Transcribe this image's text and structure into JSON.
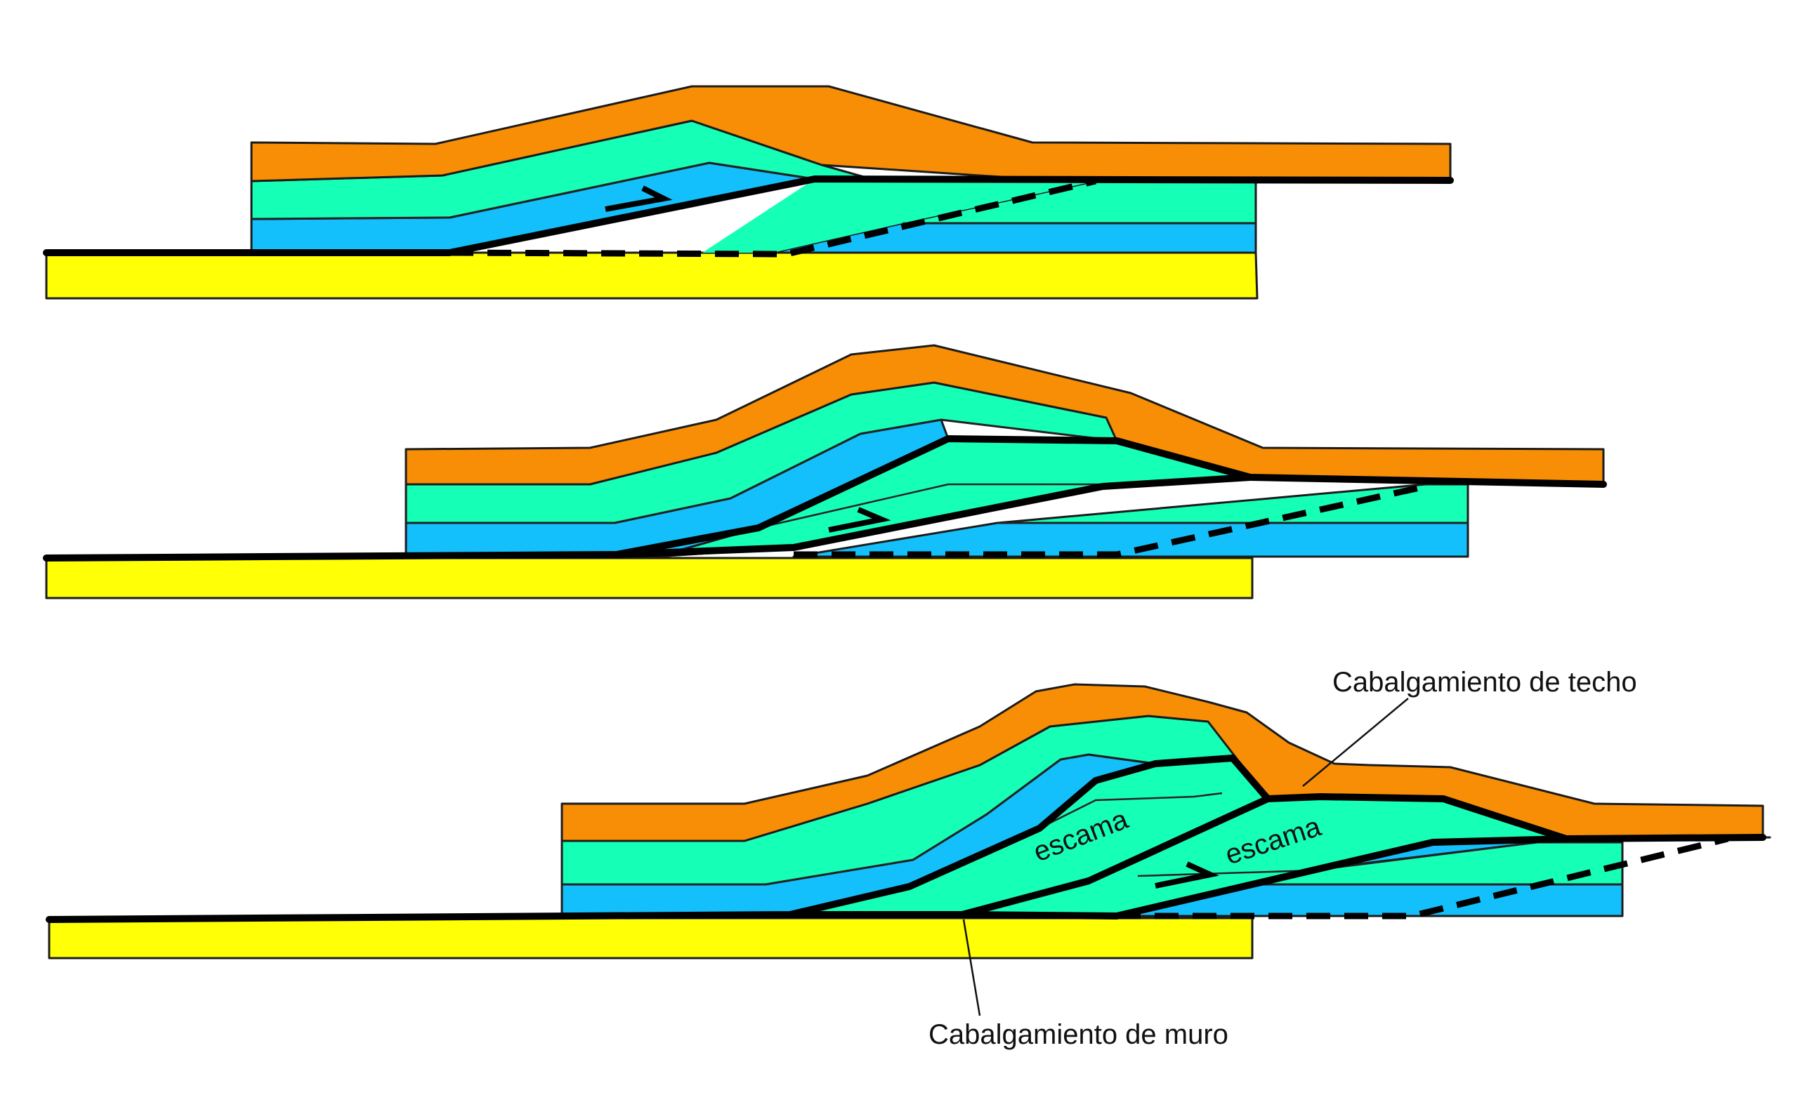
{
  "labels": {
    "roof_thrust": "Cabalgamiento de techo",
    "floor_thrust": "Cabalgamiento de muro",
    "horse": "escama"
  },
  "colors": {
    "top_layer": "#F78E05",
    "middle_layer": "#16FFB6",
    "lower_layer": "#13C0FC",
    "basement": "#FFFF05",
    "fault_line": "#000000"
  },
  "panels": [
    "stage-1",
    "stage-2",
    "stage-3"
  ]
}
